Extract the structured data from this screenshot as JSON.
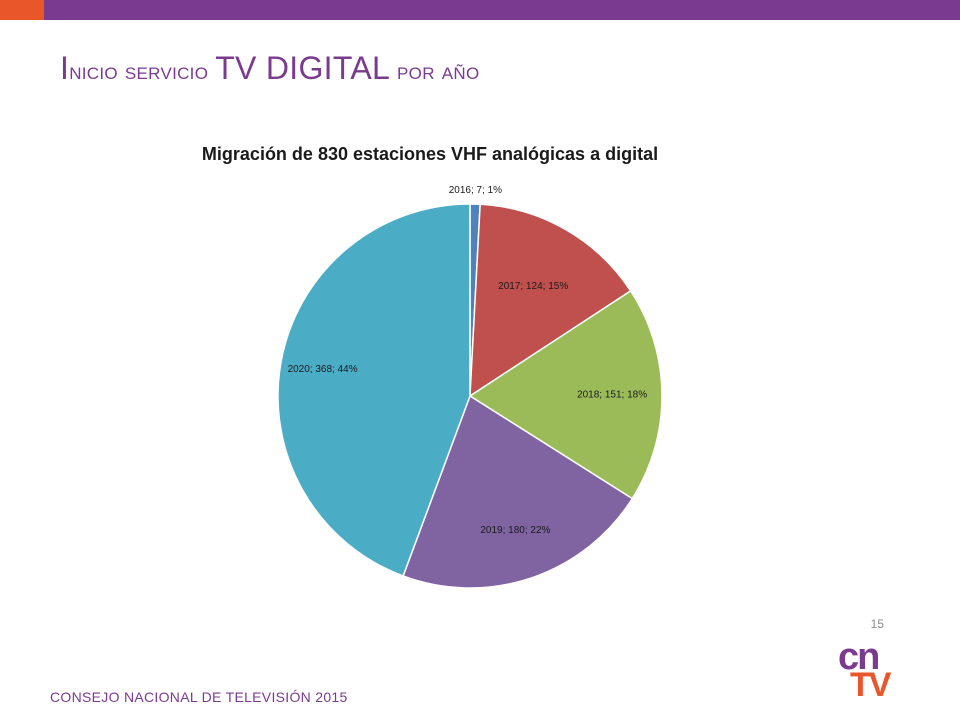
{
  "slide": {
    "title_initial": "I",
    "title_part1": "nicio servicio ",
    "title_big": "TV DIGITAL",
    "title_part2": " por año",
    "page_number": "15",
    "footer": "CONSEJO NACIONAL DE TELEVISIÓN 2015",
    "logo_line1": "cn",
    "logo_line2": "TV"
  },
  "colors": {
    "top_bar": "#7a3b8f",
    "accent": "#e8562a"
  },
  "chart_data": {
    "type": "pie",
    "title": "Migración de 830 estaciones VHF analógicas a digital",
    "legend": "none",
    "slices": [
      {
        "category": "2016",
        "value": 7,
        "percent": "1%",
        "label": "2016; 7; 1%",
        "color": "#4f81bd"
      },
      {
        "category": "2017",
        "value": 124,
        "percent": "15%",
        "label": "2017; 124; 15%",
        "color": "#c0504d"
      },
      {
        "category": "2018",
        "value": 151,
        "percent": "18%",
        "label": "2018; 151; 18%",
        "color": "#9bbb59"
      },
      {
        "category": "2019",
        "value": 180,
        "percent": "22%",
        "label": "2019; 180; 22%",
        "color": "#8064a2"
      },
      {
        "category": "2020",
        "value": 368,
        "percent": "44%",
        "label": "2020; 368; 44%",
        "color": "#4bacc6"
      }
    ]
  }
}
